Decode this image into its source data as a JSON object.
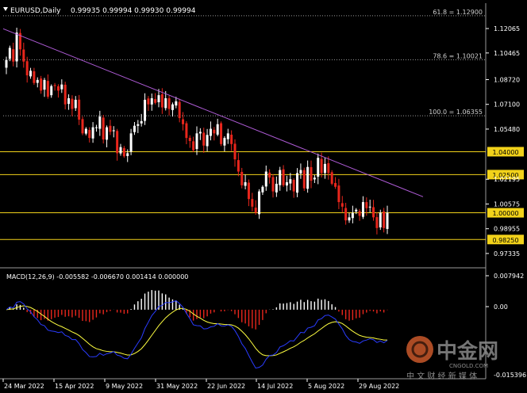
{
  "window": {
    "symbol_label": "EURUSD,Daily",
    "ohlc": "0.99935 0.99994 0.99930 0.99994",
    "menu_icon": "triangle-down-icon"
  },
  "colors": {
    "background": "#000000",
    "bull_candle": "#ffffff",
    "bear_candle": "#e8261c",
    "trendline": "#b05cd8",
    "level_line": "#f2d21a",
    "fibo_line": "#9a9a9a",
    "macd_hist": "#ffffff",
    "macd_neg": "#e8261c",
    "macd_signal": "#ffff40",
    "macd_line": "#2a3cff",
    "axis_text": "#ffffff"
  },
  "price_axis": {
    "ticks": [
      "1.12065",
      "1.10465",
      "1.08720",
      "1.07100",
      "1.05480",
      "1.02195",
      "1.00575",
      "0.98955",
      "0.97335"
    ]
  },
  "levels": [
    {
      "label": "1.04000",
      "value": 1.04
    },
    {
      "label": "1.02500",
      "value": 1.025
    },
    {
      "label": "1.00000",
      "value": 1.0
    },
    {
      "label": "0.98250",
      "value": 0.9825
    }
  ],
  "fibo": [
    {
      "label": "61.8 = 1.12900",
      "value": 1.129
    },
    {
      "label": "78.6 = 1.10021",
      "value": 1.10021
    },
    {
      "label": "100.0 = 1.06355",
      "value": 1.06355
    }
  ],
  "macd": {
    "label": "MACD(12,26,9) -0.005582 -0.006670 0.001414 0.000000",
    "ticks": [
      "0.007942",
      "0.00",
      "-0.015396"
    ]
  },
  "time_axis": {
    "labels": [
      "24 Mar 2022",
      "15 Apr 2022",
      "9 May 2022",
      "31 May 2022",
      "22 Jun 2022",
      "14 Jul 2022",
      "5 Aug 2022",
      "29 Aug 2022"
    ]
  },
  "watermark": {
    "brand": "中金网",
    "domain": "CNGOLD.COM",
    "slogan": "中 文 财 经 新 媒 体"
  },
  "chart_data": {
    "type": "candlestick",
    "title": "EURUSD,Daily",
    "price_range": [
      0.965,
      1.13
    ],
    "candles_close": [
      1.1,
      1.108,
      1.099,
      1.118,
      1.107,
      1.099,
      1.09,
      1.093,
      1.085,
      1.087,
      1.08,
      1.087,
      1.076,
      1.083,
      1.083,
      1.08,
      1.084,
      1.071,
      1.075,
      1.068,
      1.074,
      1.061,
      1.052,
      1.055,
      1.049,
      1.056,
      1.056,
      1.063,
      1.048,
      1.056,
      1.053,
      1.054,
      1.039,
      1.043,
      1.037,
      1.039,
      1.052,
      1.057,
      1.058,
      1.06,
      1.074,
      1.071,
      1.075,
      1.072,
      1.077,
      1.069,
      1.075,
      1.068,
      1.071,
      1.073,
      1.062,
      1.058,
      1.049,
      1.047,
      1.041,
      1.052,
      1.053,
      1.044,
      1.051,
      1.055,
      1.052,
      1.058,
      1.045,
      1.049,
      1.052,
      1.045,
      1.035,
      1.027,
      1.018,
      1.02,
      1.009,
      1.004,
      1.0,
      1.014,
      1.017,
      1.027,
      1.023,
      1.014,
      1.019,
      1.028,
      1.018,
      1.02,
      1.022,
      1.014,
      1.026,
      1.028,
      1.016,
      1.03,
      1.021,
      1.023,
      1.036,
      1.026,
      1.032,
      1.026,
      1.019,
      1.017,
      1.007,
      1.004,
      0.995,
      0.997,
      1.0,
      1.002,
      0.998,
      1.007,
      1.003,
      1.004,
      0.997,
      0.99,
      1.0,
      0.99,
      1.0
    ],
    "trendline": {
      "from": [
        "2022-03-24",
        1.1205
      ],
      "to": [
        "2022-09-05",
        1.0105
      ]
    },
    "macd": {
      "fast": 12,
      "slow": 26,
      "signal": 9,
      "main": -0.005582,
      "signal_value": -0.00667,
      "histogram": 0.001414
    },
    "macd_range": [
      -0.015396,
      0.007942
    ]
  }
}
